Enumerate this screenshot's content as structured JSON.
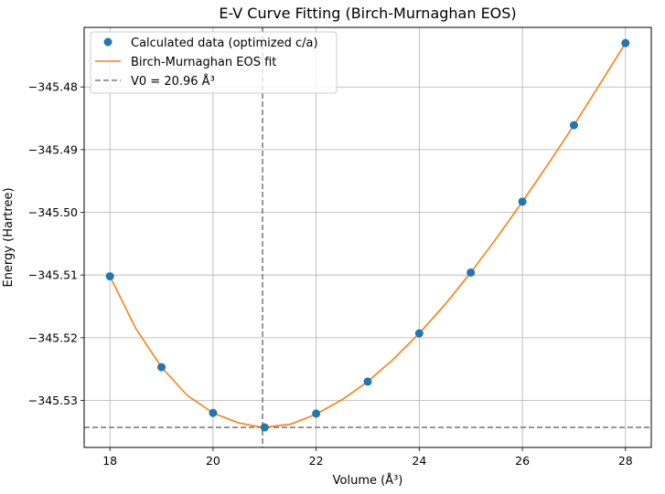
{
  "chart_data": {
    "type": "scatter",
    "title": "E-V Curve Fitting (Birch-Murnaghan EOS)",
    "xlabel": "Volume (Å³)",
    "ylabel": "Energy (Hartree)",
    "xlim": [
      17.5,
      28.5
    ],
    "ylim": [
      -345.5375,
      -345.4705
    ],
    "xticks": [
      18,
      20,
      22,
      24,
      26,
      28
    ],
    "xtick_labels": [
      "18",
      "20",
      "22",
      "24",
      "26",
      "28"
    ],
    "yticks": [
      -345.53,
      -345.52,
      -345.51,
      -345.5,
      -345.49,
      -345.48
    ],
    "ytick_labels": [
      "−345.53",
      "−345.52",
      "−345.51",
      "−345.50",
      "−345.49",
      "−345.48"
    ],
    "grid": true,
    "legend_position": "top-left",
    "series": [
      {
        "name": "Calculated data (optimized c/a)",
        "kind": "scatter",
        "color": "#1f77b4",
        "x": [
          18,
          19,
          20,
          21,
          22,
          23,
          24,
          25,
          26,
          27,
          28
        ],
        "y": [
          -345.5102,
          -345.5247,
          -345.532,
          -345.5343,
          -345.5321,
          -345.527,
          -345.5193,
          -345.5096,
          -345.4983,
          -345.4861,
          -345.473
        ]
      },
      {
        "name": "Birch-Murnaghan EOS fit",
        "kind": "line",
        "color": "#ff7f0e",
        "x": [
          18,
          18.5,
          19,
          19.5,
          20,
          20.5,
          20.96,
          21.5,
          22,
          22.5,
          23,
          23.5,
          24,
          24.5,
          25,
          25.5,
          26,
          26.5,
          27,
          27.5,
          28
        ],
        "y": [
          -345.5102,
          -345.5185,
          -345.5247,
          -345.5292,
          -345.532,
          -345.5336,
          -345.5343,
          -345.5338,
          -345.5322,
          -345.5299,
          -345.527,
          -345.5234,
          -345.5193,
          -345.5147,
          -345.5096,
          -345.5041,
          -345.4983,
          -345.4923,
          -345.4861,
          -345.4796,
          -345.473
        ]
      },
      {
        "name": "V0 = 20.96 Å³",
        "kind": "vline",
        "color": "#7f7f7f",
        "x": 20.96
      }
    ],
    "hline": {
      "y": -345.5343,
      "color": "#7f7f7f"
    }
  }
}
